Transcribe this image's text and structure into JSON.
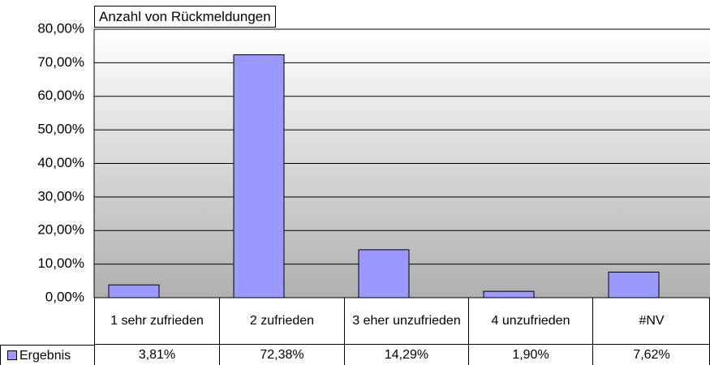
{
  "chart_data": {
    "type": "bar",
    "title": "Anzahl von Rückmeldungen",
    "categories": [
      "1 sehr zufrieden",
      "2 zufrieden",
      "3 eher unzufrieden",
      "4 unzufrieden",
      "#NV"
    ],
    "series": [
      {
        "name": "Ergebnis",
        "color": "#9999ff",
        "values": [
          3.81,
          72.38,
          14.29,
          1.9,
          7.62
        ],
        "value_labels": [
          "3,81%",
          "72,38%",
          "14,29%",
          "1,90%",
          "7,62%"
        ]
      }
    ],
    "ylim": [
      0,
      80
    ],
    "yticks": [
      {
        "value": 0,
        "label": "0,00%"
      },
      {
        "value": 10,
        "label": "10,00%"
      },
      {
        "value": 20,
        "label": "20,00%"
      },
      {
        "value": 30,
        "label": "30,00%"
      },
      {
        "value": 40,
        "label": "40,00%"
      },
      {
        "value": 50,
        "label": "50,00%"
      },
      {
        "value": 60,
        "label": "60,00%"
      },
      {
        "value": 70,
        "label": "70,00%"
      },
      {
        "value": 80,
        "label": "80,00%"
      }
    ],
    "grid": true
  }
}
